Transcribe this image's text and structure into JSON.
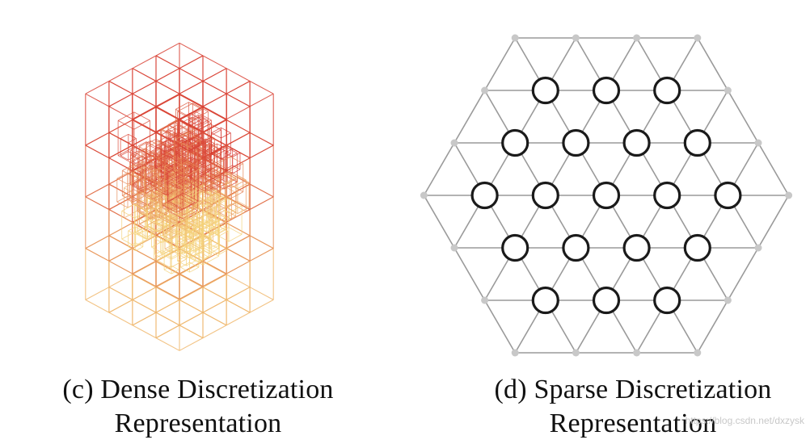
{
  "panels": [
    {
      "id": "c",
      "caption_line1": "(c) Dense Discretization",
      "caption_line2": "Representation",
      "colors": {
        "hot": "#d42a2a",
        "cool": "#f5d27a"
      }
    },
    {
      "id": "d",
      "caption_line1": "(d) Sparse Discretization",
      "caption_line2": "Representation",
      "colors": {
        "lattice_edge": "#9a9a9a",
        "lattice_node": "#c8c8c8",
        "active_node": "#1a1a1a"
      }
    }
  ],
  "watermark": "https://blog.csdn.net/dxzysk"
}
